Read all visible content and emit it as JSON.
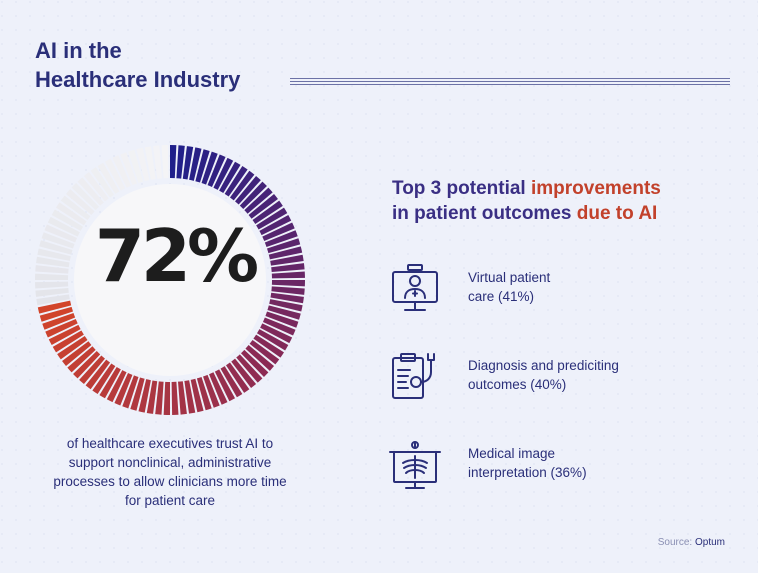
{
  "title": "AI in the\nHealthcare Industry",
  "chart_data": {
    "type": "pie",
    "variant": "donut",
    "value": 72,
    "max": 100,
    "center_label": "72%",
    "colors": {
      "start": "#1f1f8a",
      "mid": "#8a2a55",
      "end": "#d2442a",
      "remainder": "#f4f4f6"
    }
  },
  "caption": "of healthcare executives trust AI to support nonclinical, administrative processes to allow clinicians more time for patient care",
  "heading": {
    "line1_a": "Top 3 potential ",
    "line1_b": "improvements",
    "line2_a": "in patient outcomes ",
    "line2_b": "due to AI"
  },
  "items": [
    {
      "icon": "telemedicine-doctor-monitor-icon",
      "label": "Virtual patient\ncare (41%)"
    },
    {
      "icon": "clipboard-stethoscope-icon",
      "label": "Diagnosis and prediciting\noutcomes (40%)"
    },
    {
      "icon": "xray-scan-icon",
      "label": "Medical image\ninterpretation (36%)"
    }
  ],
  "source": {
    "prefix": "Source: ",
    "name": "Optum"
  },
  "colors": {
    "navy": "#2a2f79",
    "accent": "#c2412b",
    "background": "#eef1fa"
  }
}
